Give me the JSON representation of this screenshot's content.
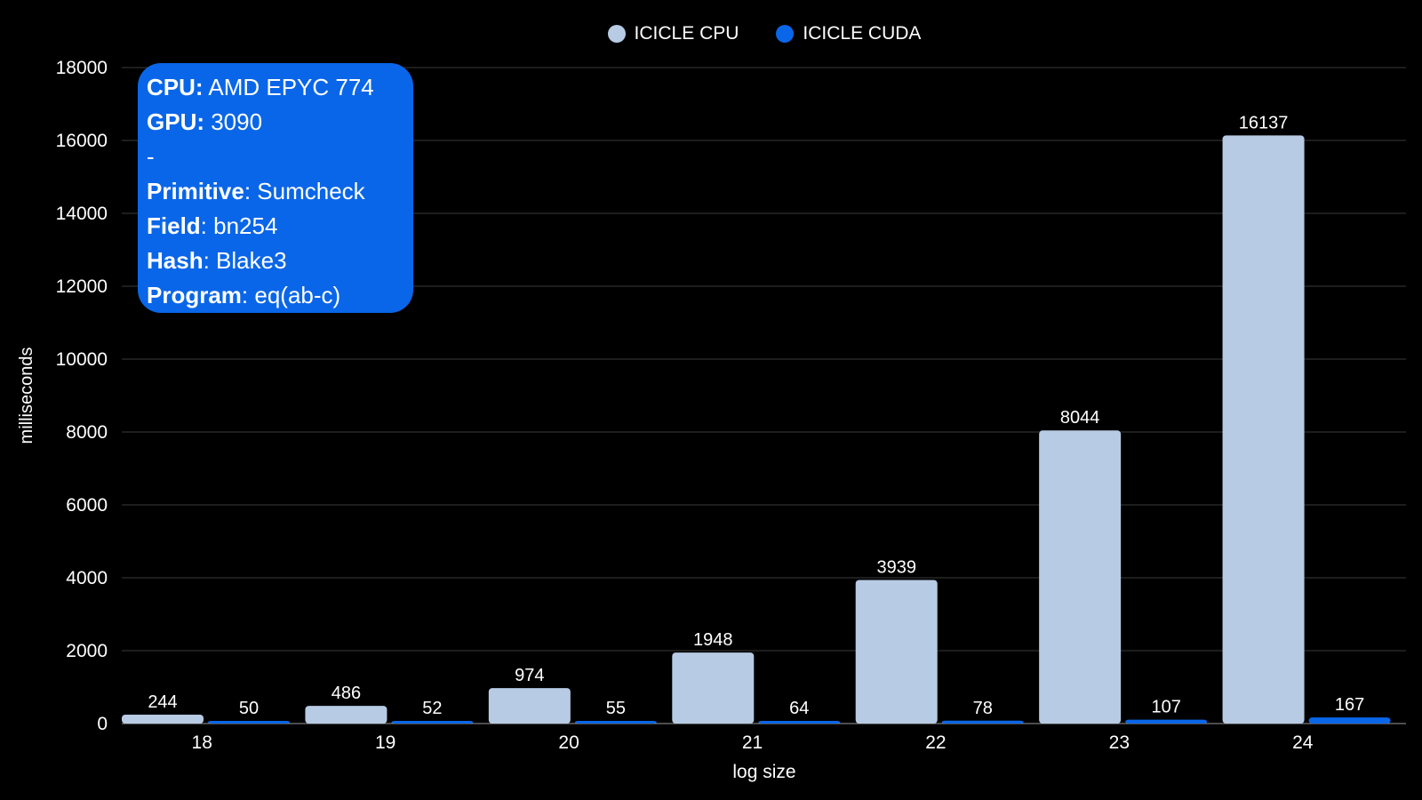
{
  "legend": [
    {
      "name": "ICICLE CPU",
      "color": "#b8cbe4"
    },
    {
      "name": "ICICLE CUDA",
      "color": "#0a66e8"
    }
  ],
  "info_box": [
    {
      "key": "CPU:",
      "value": " AMD EPYC 774"
    },
    {
      "key": "GPU:",
      "value": " 3090"
    },
    {
      "key": "",
      "value": "-"
    },
    {
      "key": "Primitive",
      "value": ": Sumcheck"
    },
    {
      "key": "Field",
      "value": ": bn254"
    },
    {
      "key": "Hash",
      "value": ": Blake3"
    },
    {
      "key": "Program",
      "value": ": eq(ab-c)"
    }
  ],
  "chart_data": {
    "type": "bar",
    "categories": [
      "18",
      "19",
      "20",
      "21",
      "22",
      "23",
      "24"
    ],
    "series": [
      {
        "name": "ICICLE CPU",
        "color": "#b8cbe4",
        "values": [
          244,
          486,
          974,
          1948,
          3939,
          8044,
          16137
        ]
      },
      {
        "name": "ICICLE CUDA",
        "color": "#0a66e8",
        "values": [
          50,
          52,
          55,
          64,
          78,
          107,
          167
        ]
      }
    ],
    "xlabel": "log size",
    "ylabel": "milliseconds",
    "ylim": [
      0,
      18000
    ],
    "yticks": [
      0,
      2000,
      4000,
      6000,
      8000,
      10000,
      12000,
      14000,
      16000,
      18000
    ],
    "grid": true,
    "legend_position": "top-center"
  }
}
